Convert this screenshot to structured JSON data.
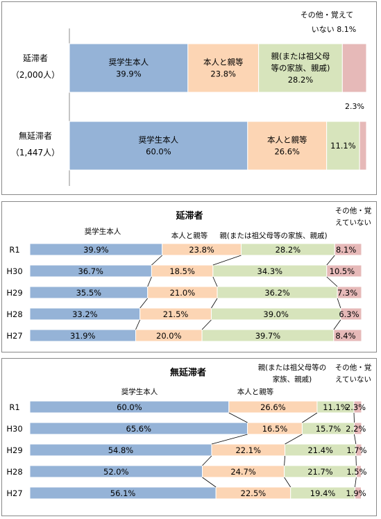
{
  "colors": [
    "#95b3d7",
    "#fcd5b4",
    "#d7e4bc",
    "#e6b9b8"
  ],
  "chart_data": [
    {
      "type": "bar",
      "orientation": "horizontal-stacked-100",
      "categories": [
        {
          "line1": "延滞者",
          "line2": "（2,000人）"
        },
        {
          "line1": "無延滞者",
          "line2": "（1,447人）"
        }
      ],
      "series": [
        {
          "name": "奨学生本人",
          "values": [
            39.9,
            60.0
          ]
        },
        {
          "name": "本人と親等",
          "values": [
            23.8,
            26.6
          ]
        },
        {
          "name": "親(または祖父母等の家族、親戚)",
          "values": [
            28.2,
            11.1
          ]
        },
        {
          "name": "その他・覚えていない",
          "values": [
            8.1,
            2.3
          ]
        }
      ],
      "inner_labels": [
        [
          [
            "奨学生本人",
            "39.9%"
          ],
          [
            "本人と親等",
            "23.8%"
          ],
          [
            "親(または祖父母",
            "等の家族、親戚)",
            "28.2%"
          ]
        ],
        [
          [
            "奨学生本人",
            "60.0%"
          ],
          [
            "本人と親等",
            "26.6%"
          ],
          [
            "11.1%"
          ]
        ]
      ],
      "outer_labels": [
        [
          "その他・覚えて",
          "いない 8.1%"
        ],
        [
          "2.3%"
        ]
      ]
    },
    {
      "type": "bar",
      "orientation": "horizontal-stacked-100",
      "title": "延滞者",
      "categories": [
        "R1",
        "H30",
        "H29",
        "H28",
        "H27"
      ],
      "legend_labels": [
        [
          "奨学生本人"
        ],
        [
          "本人と親等"
        ],
        [
          "親(または祖父母等の家族、親戚)"
        ],
        [
          "その他・覚",
          "えていない"
        ]
      ],
      "series": [
        {
          "name": "奨学生本人",
          "values": [
            39.9,
            36.7,
            35.5,
            33.2,
            31.9
          ]
        },
        {
          "name": "本人と親等",
          "values": [
            23.8,
            18.5,
            21.0,
            21.5,
            20.0
          ]
        },
        {
          "name": "親(または祖父母等の家族、親戚)",
          "values": [
            28.2,
            34.3,
            36.2,
            39.0,
            39.7
          ]
        },
        {
          "name": "その他・覚えていない",
          "values": [
            8.1,
            10.5,
            7.3,
            6.3,
            8.4
          ]
        }
      ]
    },
    {
      "type": "bar",
      "orientation": "horizontal-stacked-100",
      "title": "無延滞者",
      "categories": [
        "R1",
        "H30",
        "H29",
        "H28",
        "H27"
      ],
      "legend_labels": [
        [
          "奨学生本人"
        ],
        [
          "本人と親等"
        ],
        [
          "親(または祖父母等の",
          "家族、親戚)"
        ],
        [
          "その他・覚",
          "えていない"
        ]
      ],
      "series": [
        {
          "name": "奨学生本人",
          "values": [
            60.0,
            65.6,
            54.8,
            52.0,
            56.1
          ]
        },
        {
          "name": "本人と親等",
          "values": [
            26.6,
            16.5,
            22.1,
            24.7,
            22.5
          ]
        },
        {
          "name": "親(または祖父母等の家族、親戚)",
          "values": [
            11.1,
            15.7,
            21.4,
            21.7,
            19.4
          ]
        },
        {
          "name": "その他・覚えていない",
          "values": [
            2.3,
            2.2,
            1.7,
            1.5,
            1.9
          ]
        }
      ]
    }
  ]
}
